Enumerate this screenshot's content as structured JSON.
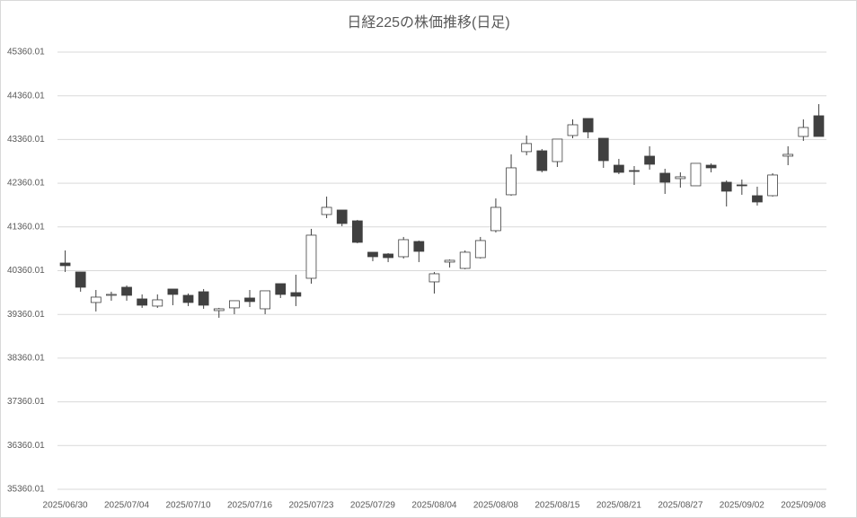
{
  "chart_data": {
    "type": "candlestick",
    "title": "日経225の株価推移(日足)",
    "categories": [
      "2025/06/30",
      null,
      null,
      null,
      "2025/07/04",
      null,
      null,
      null,
      "2025/07/10",
      null,
      null,
      null,
      "2025/07/16",
      null,
      null,
      null,
      "2025/07/23",
      null,
      null,
      null,
      "2025/07/29",
      null,
      null,
      null,
      "2025/08/04",
      null,
      null,
      null,
      "2025/08/08",
      null,
      null,
      null,
      "2025/08/15",
      null,
      null,
      null,
      "2025/08/21",
      null,
      null,
      null,
      "2025/08/27",
      null,
      null,
      null,
      "2025/09/02",
      null,
      null,
      null,
      "2025/09/08",
      null
    ],
    "open": [
      40535,
      40330,
      39632,
      39796,
      39981,
      39714,
      39550,
      39940,
      39796,
      39878,
      39447,
      39509,
      39735,
      39488,
      40063,
      39858,
      40186,
      41644,
      41747,
      41500,
      40782,
      40741,
      40679,
      41028,
      40104,
      40556,
      40412,
      40658,
      41275,
      42096,
      43082,
      43102,
      42855,
      43451,
      43841,
      43389,
      42773,
      42650,
      42979,
      42589,
      42466,
      42301,
      42773,
      42383,
      42322,
      42075,
      42075,
      42979,
      43430,
      43903
    ],
    "high": [
      40823,
      40330,
      39919,
      39879,
      40022,
      39817,
      39817,
      39940,
      39838,
      39940,
      39509,
      39673,
      39919,
      39899,
      40063,
      40268,
      41316,
      42055,
      41747,
      41521,
      40782,
      40762,
      41131,
      41049,
      40330,
      40617,
      40823,
      41131,
      42013,
      43020,
      43451,
      43143,
      43369,
      43820,
      43841,
      43389,
      42917,
      42753,
      43205,
      42691,
      42609,
      42815,
      42815,
      42424,
      42445,
      42281,
      42589,
      43205,
      43820,
      44169
    ],
    "low": [
      40330,
      39879,
      39427,
      39673,
      39673,
      39509,
      39509,
      39570,
      39550,
      39488,
      39283,
      39365,
      39529,
      39365,
      39735,
      39550,
      40063,
      41562,
      41377,
      40987,
      40577,
      40556,
      40638,
      40556,
      39837,
      40433,
      40392,
      40638,
      41234,
      42075,
      43000,
      42609,
      42732,
      43389,
      43389,
      42712,
      42568,
      42322,
      42671,
      42116,
      42260,
      42301,
      42609,
      41829,
      42096,
      41849,
      42055,
      42773,
      43328,
      43430
    ],
    "close": [
      40474,
      39981,
      39755,
      39817,
      39796,
      39570,
      39693,
      39817,
      39632,
      39570,
      39488,
      39673,
      39653,
      39899,
      39817,
      39776,
      41172,
      41808,
      41439,
      41008,
      40679,
      40658,
      41069,
      40802,
      40289,
      40597,
      40782,
      41049,
      41808,
      42712,
      43267,
      42650,
      43369,
      43697,
      43533,
      42876,
      42609,
      42630,
      42794,
      42383,
      42507,
      42815,
      42712,
      42178,
      42301,
      41931,
      42548,
      43020,
      43635,
      43430
    ],
    "up_color": "#ffffff",
    "down_color": "#404040",
    "line_color": "#404040",
    "ylim": [
      35360.01,
      45360.01
    ],
    "yticks": [
      35360.01,
      36360.01,
      37360.01,
      38360.01,
      39360.01,
      40360.01,
      41360.01,
      42360.01,
      43360.01,
      44360.01,
      45360.01
    ],
    "grid": true
  }
}
